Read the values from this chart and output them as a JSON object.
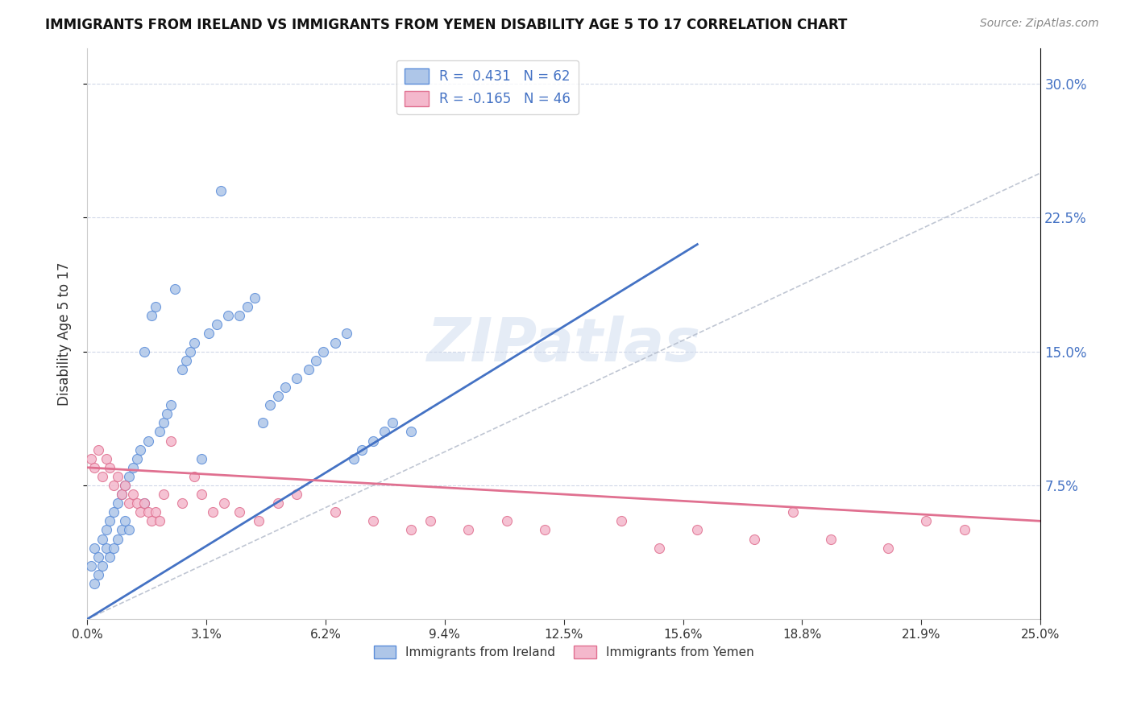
{
  "title": "IMMIGRANTS FROM IRELAND VS IMMIGRANTS FROM YEMEN DISABILITY AGE 5 TO 17 CORRELATION CHART",
  "source": "Source: ZipAtlas.com",
  "ylabel": "Disability Age 5 to 17",
  "ytick_values": [
    0.075,
    0.15,
    0.225,
    0.3
  ],
  "xlim": [
    0.0,
    0.25
  ],
  "ylim": [
    0.0,
    0.32
  ],
  "legend_ireland_R": "R =  0.431",
  "legend_ireland_N": "N = 62",
  "legend_yemen_R": "R = -0.165",
  "legend_yemen_N": "N = 46",
  "ireland_color": "#aec6e8",
  "ireland_edge_color": "#5b8dd9",
  "ireland_line_color": "#4472c4",
  "yemen_color": "#f4b8cc",
  "yemen_edge_color": "#e07090",
  "yemen_line_color": "#e07090",
  "watermark": "ZIPatlas",
  "ireland_x": [
    0.001,
    0.002,
    0.002,
    0.003,
    0.003,
    0.004,
    0.004,
    0.005,
    0.005,
    0.006,
    0.006,
    0.007,
    0.007,
    0.008,
    0.008,
    0.009,
    0.009,
    0.01,
    0.01,
    0.011,
    0.011,
    0.012,
    0.013,
    0.014,
    0.015,
    0.015,
    0.016,
    0.017,
    0.018,
    0.019,
    0.02,
    0.021,
    0.022,
    0.023,
    0.025,
    0.026,
    0.027,
    0.028,
    0.03,
    0.032,
    0.034,
    0.035,
    0.037,
    0.04,
    0.042,
    0.044,
    0.046,
    0.048,
    0.05,
    0.052,
    0.055,
    0.058,
    0.06,
    0.062,
    0.065,
    0.068,
    0.07,
    0.072,
    0.075,
    0.078,
    0.08,
    0.085
  ],
  "ireland_y": [
    0.03,
    0.02,
    0.04,
    0.035,
    0.025,
    0.045,
    0.03,
    0.05,
    0.04,
    0.055,
    0.035,
    0.06,
    0.04,
    0.065,
    0.045,
    0.07,
    0.05,
    0.075,
    0.055,
    0.08,
    0.05,
    0.085,
    0.09,
    0.095,
    0.15,
    0.065,
    0.1,
    0.17,
    0.175,
    0.105,
    0.11,
    0.115,
    0.12,
    0.185,
    0.14,
    0.145,
    0.15,
    0.155,
    0.09,
    0.16,
    0.165,
    0.24,
    0.17,
    0.17,
    0.175,
    0.18,
    0.11,
    0.12,
    0.125,
    0.13,
    0.135,
    0.14,
    0.145,
    0.15,
    0.155,
    0.16,
    0.09,
    0.095,
    0.1,
    0.105,
    0.11,
    0.105
  ],
  "yemen_x": [
    0.001,
    0.002,
    0.003,
    0.004,
    0.005,
    0.006,
    0.007,
    0.008,
    0.009,
    0.01,
    0.011,
    0.012,
    0.013,
    0.014,
    0.015,
    0.016,
    0.017,
    0.018,
    0.019,
    0.02,
    0.022,
    0.025,
    0.028,
    0.03,
    0.033,
    0.036,
    0.04,
    0.045,
    0.05,
    0.055,
    0.065,
    0.075,
    0.085,
    0.09,
    0.1,
    0.11,
    0.12,
    0.14,
    0.15,
    0.16,
    0.175,
    0.185,
    0.195,
    0.21,
    0.22,
    0.23
  ],
  "yemen_y": [
    0.09,
    0.085,
    0.095,
    0.08,
    0.09,
    0.085,
    0.075,
    0.08,
    0.07,
    0.075,
    0.065,
    0.07,
    0.065,
    0.06,
    0.065,
    0.06,
    0.055,
    0.06,
    0.055,
    0.07,
    0.1,
    0.065,
    0.08,
    0.07,
    0.06,
    0.065,
    0.06,
    0.055,
    0.065,
    0.07,
    0.06,
    0.055,
    0.05,
    0.055,
    0.05,
    0.055,
    0.05,
    0.055,
    0.04,
    0.05,
    0.045,
    0.06,
    0.045,
    0.04,
    0.055,
    0.05
  ],
  "ireland_trend_x": [
    0.0,
    0.16
  ],
  "ireland_trend_y": [
    0.0,
    0.21
  ],
  "yemen_trend_x": [
    0.0,
    0.25
  ],
  "yemen_trend_y": [
    0.085,
    0.055
  ]
}
